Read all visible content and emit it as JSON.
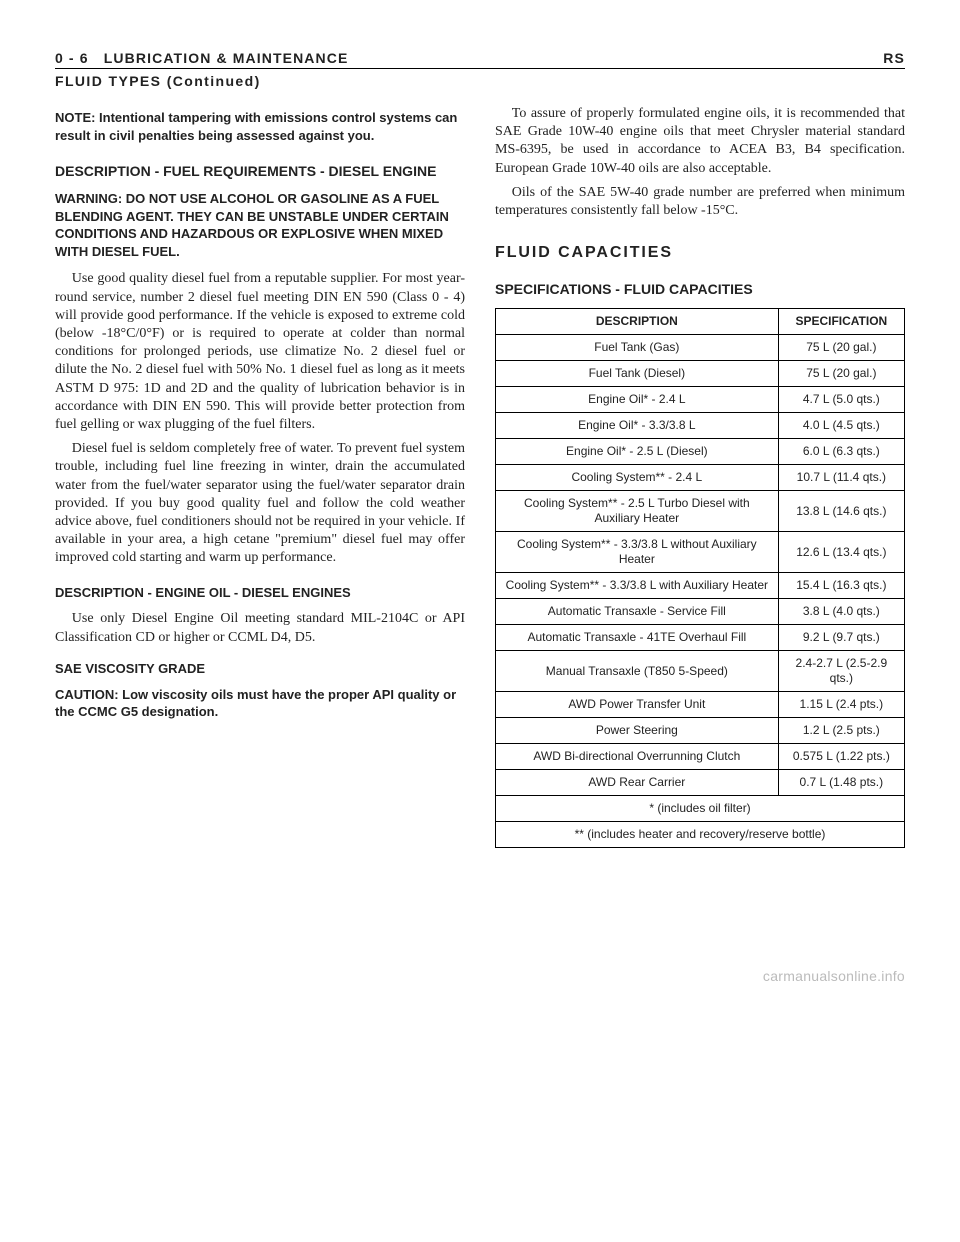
{
  "header": {
    "left": "0 - 6 LUBRICATION & MAINTENANCE",
    "right": "RS"
  },
  "continued": "FLUID TYPES (Continued)",
  "leftCol": {
    "note": "NOTE: Intentional tampering with emissions control systems can result in civil penalties being assessed against you.",
    "h1": "DESCRIPTION - FUEL REQUIREMENTS - DIESEL ENGINE",
    "warning": "WARNING: DO NOT USE ALCOHOL OR GASOLINE AS A FUEL BLENDING AGENT. THEY CAN BE UNSTABLE UNDER CERTAIN CONDITIONS AND HAZARDOUS OR EXPLOSIVE WHEN MIXED WITH DIESEL FUEL.",
    "p1": "Use good quality diesel fuel from a reputable supplier. For most year-round service, number 2 diesel fuel meeting DIN EN 590 (Class 0 - 4) will provide good performance. If the vehicle is exposed to extreme cold (below -18°C/0°F) or is required to operate at colder than normal conditions for prolonged periods, use climatize No. 2 diesel fuel or dilute the No. 2 diesel fuel with 50% No. 1 diesel fuel as long as it meets ASTM D 975: 1D and 2D and the quality of lubrication behavior is in accordance with DIN EN 590. This will provide better protection from fuel gelling or wax plugging of the fuel filters.",
    "p2": "Diesel fuel is seldom completely free of water. To prevent fuel system trouble, including fuel line freezing in winter, drain the accumulated water from the fuel/water separator using the fuel/water separator drain provided. If you buy good quality fuel and follow the cold weather advice above, fuel conditioners should not be required in your vehicle. If available in your area, a high cetane \"premium\" diesel fuel may offer improved cold starting and warm up performance.",
    "h2": "DESCRIPTION - ENGINE OIL - DIESEL ENGINES",
    "p3": "Use only Diesel Engine Oil meeting standard MIL-2104C or API Classification CD or higher or CCML D4, D5.",
    "h3": "SAE VISCOSITY GRADE",
    "caution": "CAUTION: Low viscosity oils must have the proper API quality or the CCMC G5 designation."
  },
  "rightCol": {
    "p1": "To assure of properly formulated engine oils, it is recommended that SAE Grade 10W-40 engine oils that meet Chrysler material standard MS-6395, be used in accordance to ACEA B3, B4 specification. European Grade 10W-40 oils are also acceptable.",
    "p2": "Oils of the SAE 5W-40 grade number are preferred when minimum temperatures consistently fall below -15°C.",
    "h1": "FLUID CAPACITIES",
    "h2": "SPECIFICATIONS - FLUID CAPACITIES",
    "table": {
      "headers": [
        "DESCRIPTION",
        "SPECIFICATION"
      ],
      "rows": [
        [
          "Fuel Tank (Gas)",
          "75 L (20 gal.)"
        ],
        [
          "Fuel Tank (Diesel)",
          "75 L (20 gal.)"
        ],
        [
          "Engine Oil* - 2.4 L",
          "4.7 L (5.0 qts.)"
        ],
        [
          "Engine Oil* - 3.3/3.8 L",
          "4.0 L (4.5 qts.)"
        ],
        [
          "Engine Oil* - 2.5 L (Diesel)",
          "6.0 L (6.3 qts.)"
        ],
        [
          "Cooling System** - 2.4 L",
          "10.7 L (11.4 qts.)"
        ],
        [
          "Cooling System** - 2.5 L Turbo Diesel with Auxiliary Heater",
          "13.8 L (14.6 qts.)"
        ],
        [
          "Cooling System** - 3.3/3.8 L without Auxiliary Heater",
          "12.6 L (13.4 qts.)"
        ],
        [
          "Cooling System** - 3.3/3.8 L with Auxiliary Heater",
          "15.4 L (16.3 qts.)"
        ],
        [
          "Automatic Transaxle - Service Fill",
          "3.8 L (4.0 qts.)"
        ],
        [
          "Automatic Transaxle - 41TE Overhaul Fill",
          "9.2 L (9.7 qts.)"
        ],
        [
          "Manual Transaxle (T850 5-Speed)",
          "2.4-2.7 L (2.5-2.9 qts.)"
        ],
        [
          "AWD Power Transfer Unit",
          "1.15 L (2.4 pts.)"
        ],
        [
          "Power Steering",
          "1.2 L (2.5 pts.)"
        ],
        [
          "AWD Bi-directional Overrunning Clutch",
          "0.575 L (1.22 pts.)"
        ],
        [
          "AWD Rear Carrier",
          "0.7 L (1.48 pts.)"
        ]
      ],
      "footnote1": "* (includes oil filter)",
      "footnote2": "** (includes heater and recovery/reserve bottle)"
    }
  },
  "footer": "carmanualsonline.info"
}
